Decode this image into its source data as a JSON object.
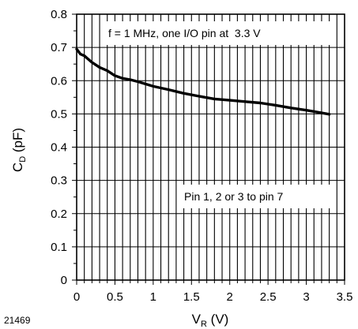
{
  "chart_data": {
    "type": "line",
    "annotations": [
      "f = 1 MHz, one I/O pin at  3.3 V",
      "Pin 1, 2 or 3 to pin 7"
    ],
    "figure_id": "21469",
    "xlabel": {
      "main": "V",
      "sub": "R",
      "unit": " (V)"
    },
    "ylabel": {
      "main": "C",
      "sub": "D",
      "unit": " (pF)"
    },
    "xlim": [
      0,
      3.5
    ],
    "ylim": [
      0,
      0.8
    ],
    "x_ticks": [
      "0",
      "0.5",
      "1",
      "1.5",
      "2",
      "2.5",
      "3",
      "3.5"
    ],
    "y_ticks": [
      "0",
      "0.1",
      "0.2",
      "0.3",
      "0.4",
      "0.5",
      "0.6",
      "0.7",
      "0.8"
    ],
    "x_minor_step": 0.1,
    "y_minor_step": 0.05,
    "grid": true,
    "series": [
      {
        "x": [
          0.0,
          0.05,
          0.1,
          0.15,
          0.2,
          0.3,
          0.4,
          0.5,
          0.6,
          0.7,
          0.8,
          1.0,
          1.2,
          1.4,
          1.6,
          1.8,
          2.0,
          2.2,
          2.4,
          2.6,
          2.8,
          3.0,
          3.2,
          3.3
        ],
        "y": [
          0.695,
          0.68,
          0.675,
          0.665,
          0.655,
          0.64,
          0.63,
          0.615,
          0.607,
          0.603,
          0.597,
          0.583,
          0.573,
          0.562,
          0.553,
          0.545,
          0.541,
          0.537,
          0.533,
          0.526,
          0.518,
          0.511,
          0.503,
          0.499
        ]
      }
    ]
  }
}
